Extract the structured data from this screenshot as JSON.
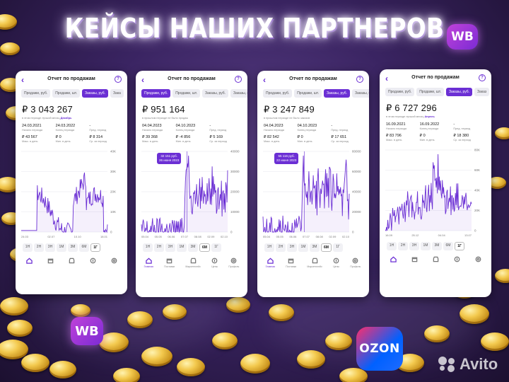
{
  "headline": "КЕЙСЫ НАШИХ ПАРТНЕРОВ",
  "badges": {
    "wb_top": "WB",
    "wb_bottom": "WB",
    "ozon": "OZON",
    "avito": "Avito"
  },
  "colors": {
    "accent": "#6b2fd4",
    "line": "#6b2fd4",
    "background": "#3a2462"
  },
  "icons": [
    "back-arrow-icon",
    "help-icon",
    "home-icon",
    "box-icon",
    "store-icon",
    "price-icon",
    "profile-icon"
  ],
  "phones": [
    {
      "title": "Отчет по продажам",
      "tabs": [
        "Продажи, руб.",
        "Продажи, шт.",
        "Заказы, руб.",
        "Зака"
      ],
      "active_tab": 2,
      "amount": "₽ 3 043 267",
      "note": "в этом периоде лучший месяц",
      "note_highlight": "Декабрь",
      "stats": [
        {
          "value": "24.03.2021",
          "label": "Начало периода"
        },
        {
          "value": "24.03.2022",
          "label": "Конец периода"
        },
        {
          "value": "-",
          "label": "Пред. период"
        },
        {
          "value": "₽ 43 567",
          "label": "Макс. в день"
        },
        {
          "value": "₽ 0",
          "label": "Мин. в день"
        },
        {
          "value": "₽ 8 314",
          "label": "Ср. за период"
        }
      ],
      "y_ticks": [
        "40K",
        "30K",
        "20K",
        "10K",
        "0"
      ],
      "x_ticks": [
        "24.03",
        "02.07",
        "10.10",
        "18.01"
      ],
      "periods": [
        "1Н",
        "2Н",
        "3Н",
        "1М",
        "3М",
        "6М",
        "1Г"
      ],
      "active_period": 6,
      "nav": [],
      "tooltip": null
    },
    {
      "title": "Отчет по продажам",
      "tabs": [
        "Продажи, руб.",
        "Продажи, шт.",
        "Заказы, руб.",
        "Заказы, шт."
      ],
      "active_tab": 0,
      "amount": "₽ 951 164",
      "note": "в прошлом периоде не было продаж",
      "note_highlight": "",
      "stats": [
        {
          "value": "04.04.2023",
          "label": "Начало периода"
        },
        {
          "value": "04.10.2023",
          "label": "Конец периода"
        },
        {
          "value": "-",
          "label": "Пред. период"
        },
        {
          "value": "₽ 39 368",
          "label": "Макс. в день"
        },
        {
          "value": "₽ -4 856",
          "label": "Мин. в день"
        },
        {
          "value": "₽ 5 169",
          "label": "Ср. за период"
        }
      ],
      "y_ticks": [
        "40000",
        "30000",
        "20000",
        "10000",
        "0"
      ],
      "x_ticks": [
        "05.04",
        "05.05",
        "06.06",
        "07.07",
        "08.08",
        "02.09",
        "02.10"
      ],
      "periods": [
        "1Н",
        "2Н",
        "3Н",
        "1М",
        "3М",
        "6М",
        "1Г"
      ],
      "active_period": 5,
      "nav": [
        "Главная",
        "Поставки",
        "Маркетплейс",
        "Цены",
        "Профиль"
      ],
      "tooltip": {
        "amount": "32 151 руб.",
        "date": "26 июня 2023"
      }
    },
    {
      "title": "Отчет по продажам",
      "tabs": [
        "Продажи, руб.",
        "Продажи, шт.",
        "Заказы, руб.",
        "Заказы, шт."
      ],
      "active_tab": 2,
      "amount": "₽ 3 247 849",
      "note": "в прошлом периоде не было заказов",
      "note_highlight": "",
      "stats": [
        {
          "value": "04.04.2023",
          "label": "Начало периода"
        },
        {
          "value": "04.10.2023",
          "label": "Конец периода"
        },
        {
          "value": "-",
          "label": "Пред. период"
        },
        {
          "value": "₽ 82 542",
          "label": "Макс. в день"
        },
        {
          "value": "₽ 0",
          "label": "Мин. в день"
        },
        {
          "value": "₽ 17 651",
          "label": "Ср. за период"
        }
      ],
      "y_ticks": [
        "80000",
        "60000",
        "40000",
        "20000",
        "0"
      ],
      "x_ticks": [
        "05.04",
        "05.05",
        "06.06",
        "07.07",
        "08.08",
        "02.09",
        "02.10"
      ],
      "periods": [
        "1Н",
        "2Н",
        "3Н",
        "1М",
        "3М",
        "6М",
        "1Г"
      ],
      "active_period": 5,
      "nav": [
        "Главная",
        "Поставки",
        "Маркетплейс",
        "Цены",
        "Профиль"
      ],
      "tooltip": {
        "amount": "55 116 руб.",
        "date": "22 июня 2023"
      }
    },
    {
      "title": "Отчет по продажам",
      "tabs": [
        "Продажи, руб.",
        "Продажи, шт.",
        "Заказы, руб.",
        "Заказ"
      ],
      "active_tab": 2,
      "amount": "₽ 6 727 296",
      "note": "в этом периоде лучший месяц",
      "note_highlight": "Апрель",
      "stats": [
        {
          "value": "16.09.2021",
          "label": "Начало периода"
        },
        {
          "value": "16.09.2022",
          "label": "Конец периода"
        },
        {
          "value": "-",
          "label": "Пред. период"
        },
        {
          "value": "₽ 83 796",
          "label": "Макс. в день"
        },
        {
          "value": "₽ 0",
          "label": "Мин. в день"
        },
        {
          "value": "₽ 18 380",
          "label": "Ср. за период"
        }
      ],
      "y_ticks": [
        "80K",
        "60K",
        "40K",
        "20K",
        "0"
      ],
      "x_ticks": [
        "16.09",
        "25.12",
        "04.04",
        "13.07"
      ],
      "periods": [
        "1Н",
        "2Н",
        "3Н",
        "1М",
        "3М",
        "6М",
        "1Г"
      ],
      "active_period": 6,
      "nav": [],
      "tooltip": null
    }
  ]
}
